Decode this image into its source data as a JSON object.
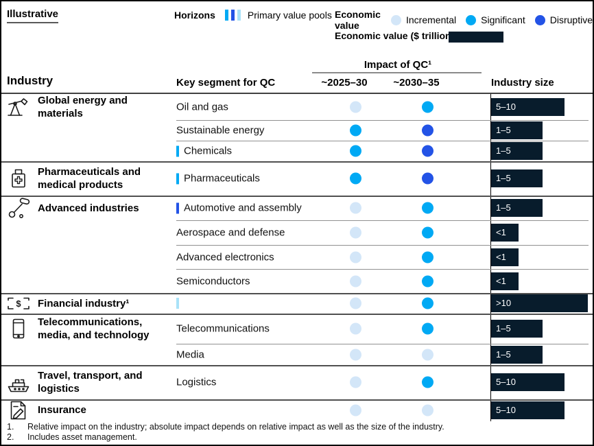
{
  "tag": "Illustrative",
  "legend": {
    "horizons_label": "Horizons",
    "horizons_note": "Primary value pools",
    "horizon_colors": [
      "#00A9F4",
      "#2353E6",
      "#A9E2F8"
    ],
    "economic_value_label": "Economic value",
    "levels": [
      {
        "name": "Incremental",
        "color": "#D3E6F8"
      },
      {
        "name": "Significant",
        "color": "#00A9F4"
      },
      {
        "name": "Disruptive",
        "color": "#2353E6"
      }
    ],
    "economic_value_trillion_label": "Economic value ($ trillion)",
    "bar_color": "#081C2C"
  },
  "header": {
    "industry": "Industry",
    "key_segment": "Key segment for QC",
    "impact": "Impact of QC¹",
    "col1": "~2025–30",
    "col2": "~2030–35",
    "industry_size": "Industry size"
  },
  "chart_data": {
    "type": "table",
    "columns": [
      "Industry",
      "Key segment for QC",
      "Impact of QC ~2025–30",
      "Impact of QC ~2030–35",
      "Industry size ($ trillion)"
    ],
    "impact_scale": [
      "Incremental",
      "Significant",
      "Disruptive"
    ],
    "industry_size_units": "$ trillion",
    "rows": [
      {
        "industry": {
          "label": "Global energy and materials",
          "icon": "oil-pump-icon"
        },
        "segment": "Oil and gas",
        "marker_color": null,
        "impact_2025_30": "Incremental",
        "impact_2030_35": "Significant",
        "industry_size": "5–10"
      },
      {
        "industry": null,
        "segment": "Sustainable energy",
        "marker_color": null,
        "impact_2025_30": "Significant",
        "impact_2030_35": "Disruptive",
        "industry_size": "1–5"
      },
      {
        "industry": null,
        "segment": "Chemicals",
        "marker_color": "#00A9F4",
        "impact_2025_30": "Significant",
        "impact_2030_35": "Disruptive",
        "industry_size": "1–5"
      },
      {
        "industry": {
          "label": "Pharmaceuticals and medical products",
          "icon": "medicine-bottle-icon"
        },
        "segment": "Pharmaceuticals",
        "marker_color": "#00A9F4",
        "impact_2025_30": "Significant",
        "impact_2030_35": "Disruptive",
        "industry_size": "1–5"
      },
      {
        "industry": {
          "label": "Advanced industries",
          "icon": "robot-arm-icon"
        },
        "segment": "Automotive and assembly",
        "marker_color": "#2353E6",
        "impact_2025_30": "Incremental",
        "impact_2030_35": "Significant",
        "industry_size": "1–5"
      },
      {
        "industry": null,
        "segment": "Aerospace and defense",
        "marker_color": null,
        "impact_2025_30": "Incremental",
        "impact_2030_35": "Significant",
        "industry_size": "<1"
      },
      {
        "industry": null,
        "segment": "Advanced electronics",
        "marker_color": null,
        "impact_2025_30": "Incremental",
        "impact_2030_35": "Significant",
        "industry_size": "<1"
      },
      {
        "industry": null,
        "segment": "Semiconductors",
        "marker_color": null,
        "impact_2025_30": "Incremental",
        "impact_2030_35": "Significant",
        "industry_size": "<1"
      },
      {
        "industry": {
          "label": "Financial industry¹",
          "icon": "banknote-icon"
        },
        "segment": "",
        "marker_color": "#A9E2F8",
        "impact_2025_30": "Incremental",
        "impact_2030_35": "Significant",
        "industry_size": ">10"
      },
      {
        "industry": {
          "label": "Telecommunications, media, and technology",
          "icon": "smartphone-icon"
        },
        "segment": "Telecommunications",
        "marker_color": null,
        "impact_2025_30": "Incremental",
        "impact_2030_35": "Significant",
        "industry_size": "1–5"
      },
      {
        "industry": null,
        "segment": "Media",
        "marker_color": null,
        "impact_2025_30": "Incremental",
        "impact_2030_35": "Incremental",
        "industry_size": "1–5"
      },
      {
        "industry": {
          "label": "Travel, transport, and logistics",
          "icon": "ship-icon"
        },
        "segment": "Logistics",
        "marker_color": null,
        "impact_2025_30": "Incremental",
        "impact_2030_35": "Significant",
        "industry_size": "5–10"
      },
      {
        "industry": {
          "label": "Insurance",
          "icon": "document-pen-icon"
        },
        "segment": "",
        "marker_color": null,
        "impact_2025_30": "Incremental",
        "impact_2030_35": "Incremental",
        "industry_size": "5–10"
      }
    ]
  },
  "footnotes": [
    {
      "num": "1.",
      "text": "Relative impact on the industry; absolute impact depends on relative impact as well as the size of the industry."
    },
    {
      "num": "2.",
      "text": "Includes asset management."
    }
  ]
}
